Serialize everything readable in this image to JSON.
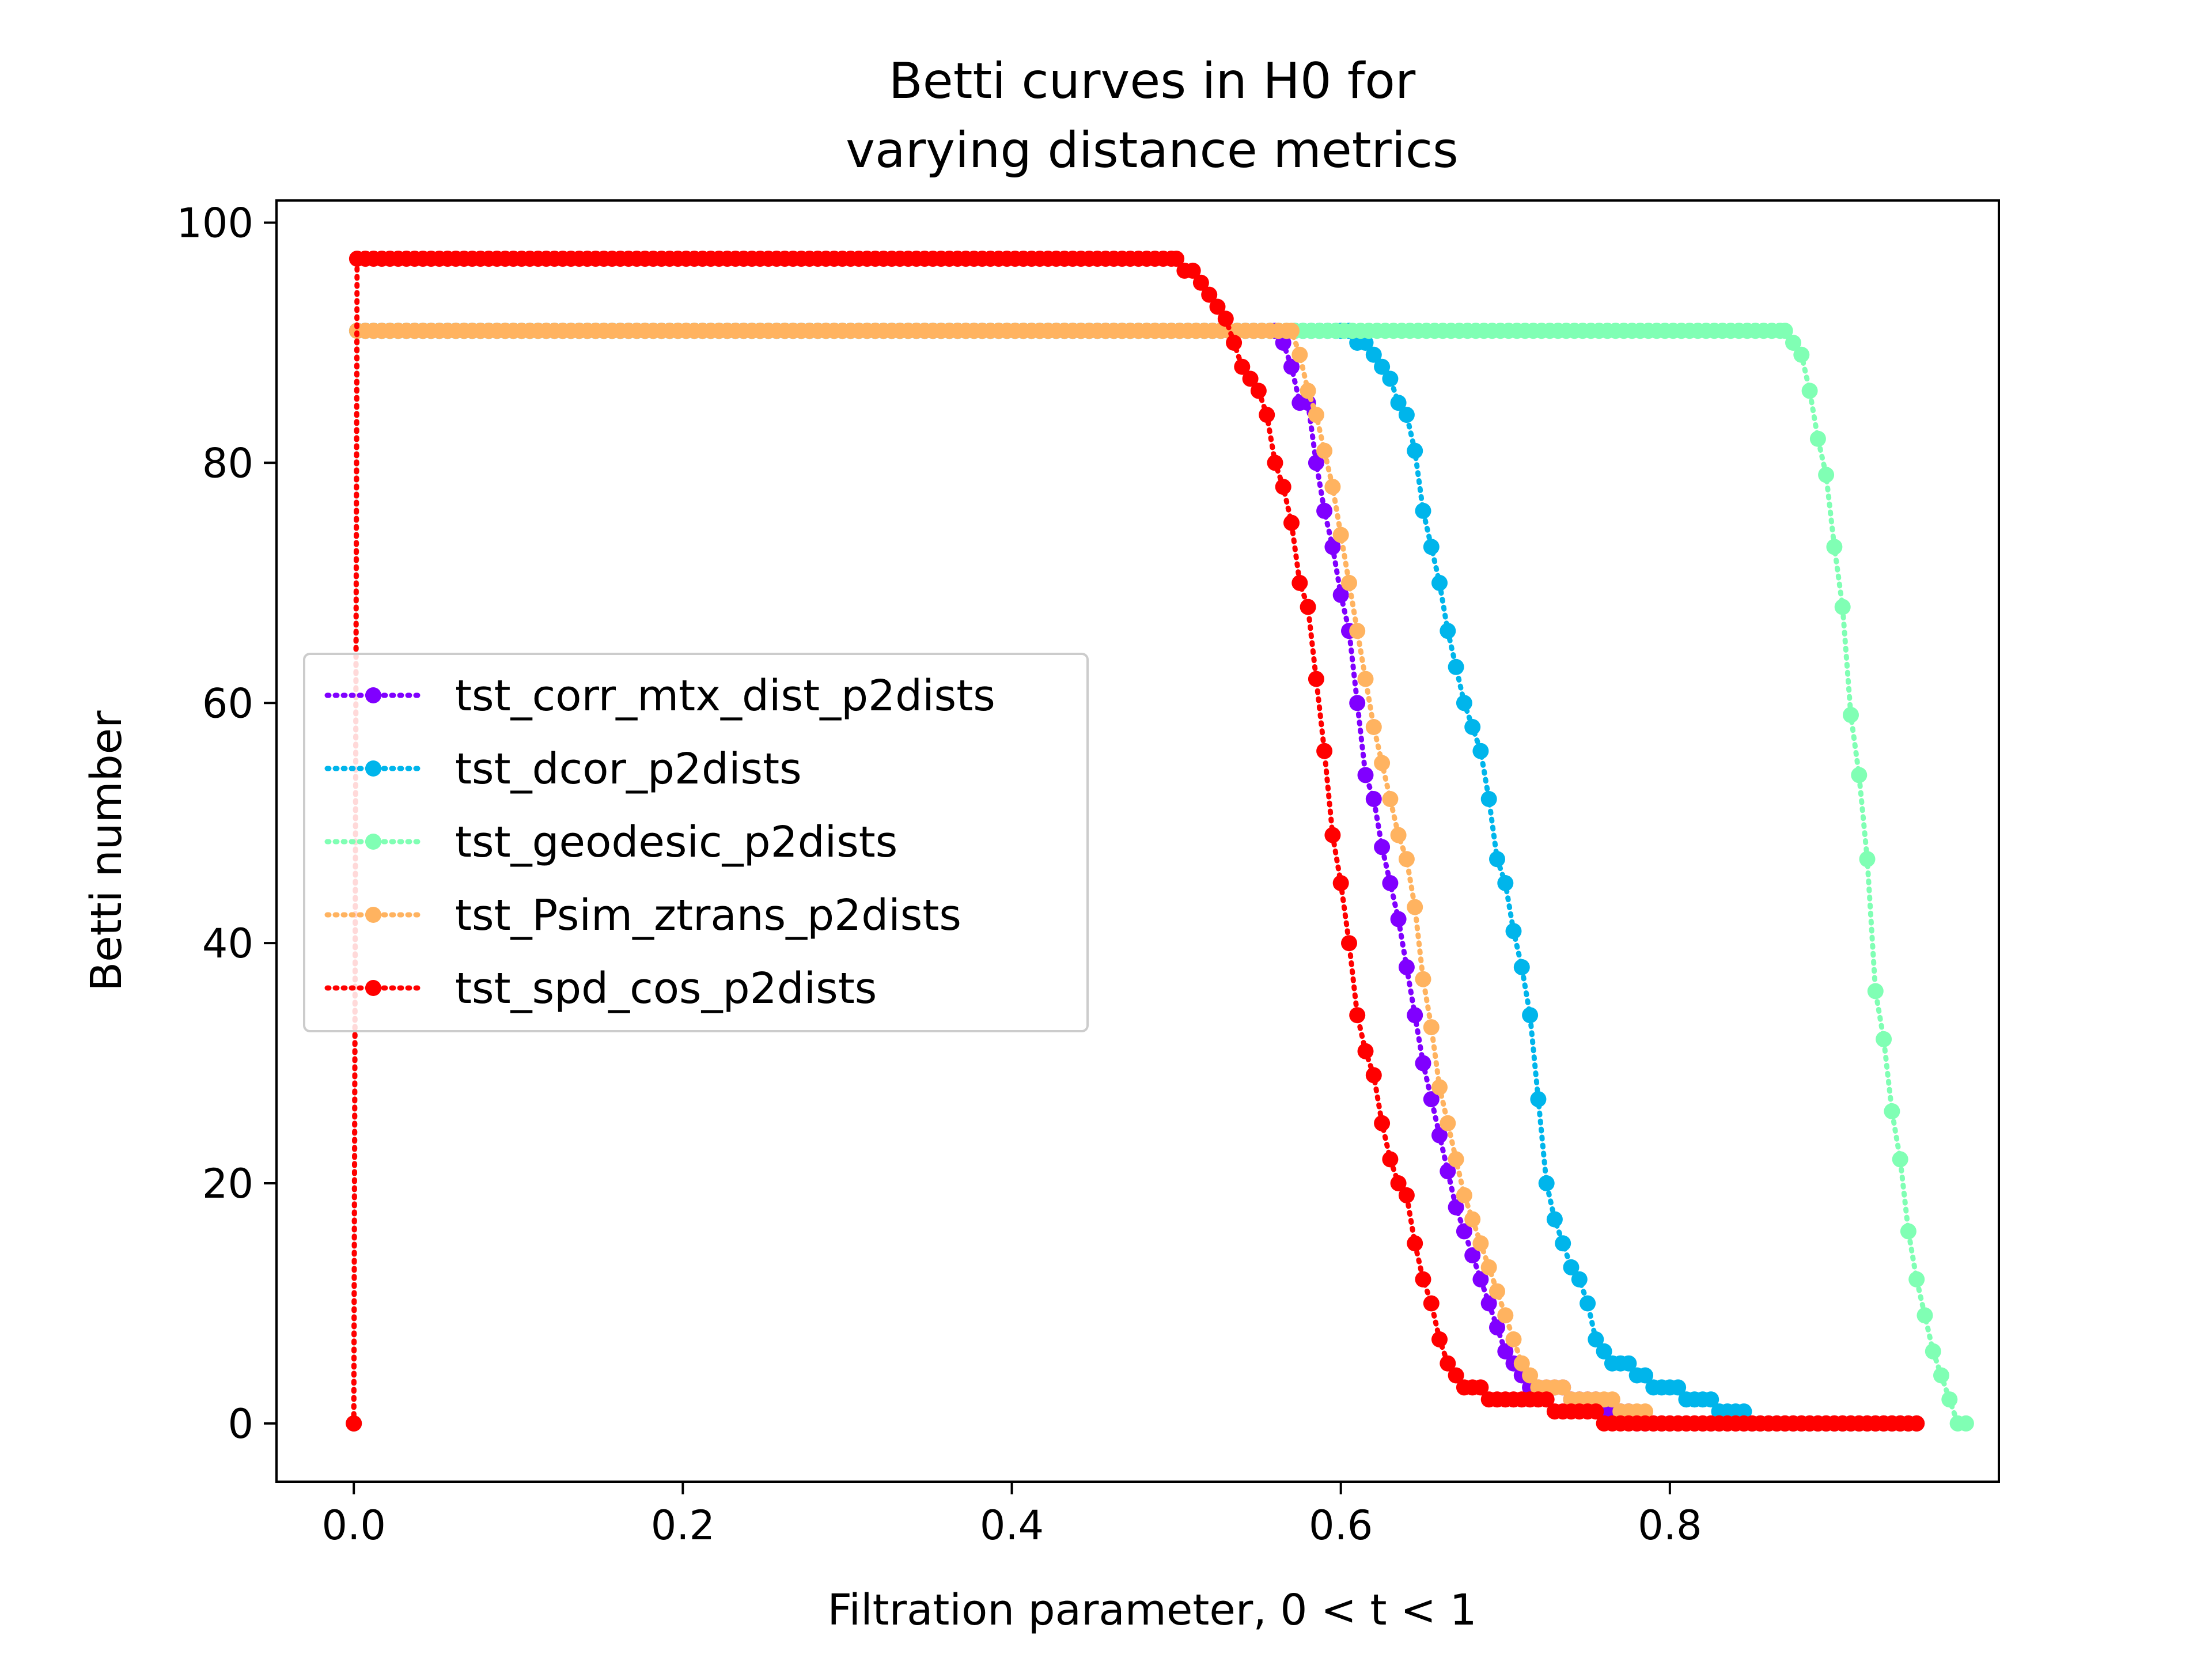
{
  "chart_data": {
    "type": "line",
    "title_line1": "Betti curves in H0 for",
    "title_line2": "varying distance metrics",
    "xlabel": "Filtration parameter, 0 < t < 1",
    "ylabel": "Betti number",
    "xlim": [
      -0.047,
      1.0
    ],
    "ylim": [
      -4.85,
      101.85
    ],
    "xticks": [
      0.0,
      0.2,
      0.4,
      0.6,
      0.8
    ],
    "xtick_labels": [
      "0.0",
      "0.2",
      "0.4",
      "0.6",
      "0.8"
    ],
    "yticks": [
      0,
      20,
      40,
      60,
      80,
      100
    ],
    "ytick_labels": [
      "0",
      "20",
      "40",
      "60",
      "80",
      "100"
    ],
    "legend_position": "center-left",
    "line_style": "dotted",
    "marker": "circle",
    "series": [
      {
        "name": "tst_corr_mtx_dist_p2dists",
        "color": "#8000ff",
        "points": [
          [
            0.0,
            0
          ],
          [
            0.002,
            91
          ],
          [
            0.56,
            91
          ],
          [
            0.565,
            90
          ],
          [
            0.57,
            88
          ],
          [
            0.575,
            85
          ],
          [
            0.58,
            85
          ],
          [
            0.585,
            80
          ],
          [
            0.59,
            76
          ],
          [
            0.595,
            73
          ],
          [
            0.6,
            69
          ],
          [
            0.605,
            66
          ],
          [
            0.61,
            60
          ],
          [
            0.615,
            54
          ],
          [
            0.62,
            52
          ],
          [
            0.625,
            48
          ],
          [
            0.63,
            45
          ],
          [
            0.635,
            42
          ],
          [
            0.64,
            38
          ],
          [
            0.645,
            34
          ],
          [
            0.65,
            30
          ],
          [
            0.655,
            27
          ],
          [
            0.66,
            24
          ],
          [
            0.665,
            21
          ],
          [
            0.67,
            18
          ],
          [
            0.675,
            16
          ],
          [
            0.68,
            14
          ],
          [
            0.685,
            12
          ],
          [
            0.69,
            10
          ],
          [
            0.695,
            8
          ],
          [
            0.7,
            6
          ],
          [
            0.705,
            5
          ],
          [
            0.71,
            4
          ],
          [
            0.715,
            3
          ],
          [
            0.72,
            3
          ],
          [
            0.73,
            3
          ],
          [
            0.74,
            2
          ],
          [
            0.75,
            2
          ],
          [
            0.76,
            1
          ],
          [
            0.77,
            1
          ],
          [
            0.78,
            0
          ],
          [
            0.95,
            0
          ]
        ]
      },
      {
        "name": "tst_dcor_p2dists",
        "color": "#00b5eb",
        "points": [
          [
            0.0,
            0
          ],
          [
            0.002,
            91
          ],
          [
            0.6,
            91
          ],
          [
            0.61,
            90
          ],
          [
            0.62,
            89
          ],
          [
            0.625,
            88
          ],
          [
            0.63,
            87
          ],
          [
            0.635,
            85
          ],
          [
            0.64,
            84
          ],
          [
            0.645,
            81
          ],
          [
            0.65,
            76
          ],
          [
            0.655,
            73
          ],
          [
            0.66,
            70
          ],
          [
            0.665,
            66
          ],
          [
            0.67,
            63
          ],
          [
            0.675,
            60
          ],
          [
            0.68,
            58
          ],
          [
            0.685,
            56
          ],
          [
            0.69,
            52
          ],
          [
            0.695,
            47
          ],
          [
            0.7,
            45
          ],
          [
            0.705,
            41
          ],
          [
            0.71,
            38
          ],
          [
            0.715,
            34
          ],
          [
            0.72,
            27
          ],
          [
            0.725,
            20
          ],
          [
            0.73,
            17
          ],
          [
            0.735,
            15
          ],
          [
            0.74,
            13
          ],
          [
            0.745,
            12
          ],
          [
            0.75,
            10
          ],
          [
            0.755,
            7
          ],
          [
            0.76,
            6
          ],
          [
            0.765,
            5
          ],
          [
            0.77,
            5
          ],
          [
            0.78,
            4
          ],
          [
            0.79,
            3
          ],
          [
            0.8,
            3
          ],
          [
            0.81,
            2
          ],
          [
            0.82,
            2
          ],
          [
            0.83,
            1
          ],
          [
            0.84,
            1
          ],
          [
            0.85,
            0
          ],
          [
            0.95,
            0
          ]
        ]
      },
      {
        "name": "tst_geodesic_p2dists",
        "color": "#80ffb4",
        "points": [
          [
            0.0,
            0
          ],
          [
            0.002,
            91
          ],
          [
            0.87,
            91
          ],
          [
            0.875,
            90
          ],
          [
            0.88,
            89
          ],
          [
            0.885,
            86
          ],
          [
            0.89,
            82
          ],
          [
            0.895,
            79
          ],
          [
            0.9,
            73
          ],
          [
            0.905,
            68
          ],
          [
            0.91,
            59
          ],
          [
            0.915,
            54
          ],
          [
            0.92,
            47
          ],
          [
            0.925,
            36
          ],
          [
            0.93,
            32
          ],
          [
            0.935,
            26
          ],
          [
            0.94,
            22
          ],
          [
            0.945,
            16
          ],
          [
            0.95,
            12
          ],
          [
            0.955,
            9
          ],
          [
            0.96,
            6
          ],
          [
            0.965,
            4
          ],
          [
            0.97,
            2
          ],
          [
            0.975,
            0
          ],
          [
            0.98,
            0
          ]
        ]
      },
      {
        "name": "tst_Psim_ztrans_p2dists",
        "color": "#ffb360",
        "points": [
          [
            0.0,
            0
          ],
          [
            0.002,
            91
          ],
          [
            0.57,
            91
          ],
          [
            0.575,
            89
          ],
          [
            0.58,
            86
          ],
          [
            0.585,
            84
          ],
          [
            0.59,
            81
          ],
          [
            0.595,
            78
          ],
          [
            0.6,
            74
          ],
          [
            0.605,
            70
          ],
          [
            0.61,
            66
          ],
          [
            0.615,
            62
          ],
          [
            0.62,
            58
          ],
          [
            0.625,
            55
          ],
          [
            0.63,
            52
          ],
          [
            0.635,
            49
          ],
          [
            0.64,
            47
          ],
          [
            0.645,
            43
          ],
          [
            0.65,
            37
          ],
          [
            0.655,
            33
          ],
          [
            0.66,
            28
          ],
          [
            0.665,
            25
          ],
          [
            0.67,
            22
          ],
          [
            0.675,
            19
          ],
          [
            0.68,
            17
          ],
          [
            0.685,
            15
          ],
          [
            0.69,
            13
          ],
          [
            0.695,
            11
          ],
          [
            0.7,
            9
          ],
          [
            0.705,
            7
          ],
          [
            0.71,
            5
          ],
          [
            0.715,
            4
          ],
          [
            0.72,
            3
          ],
          [
            0.73,
            3
          ],
          [
            0.74,
            2
          ],
          [
            0.75,
            2
          ],
          [
            0.76,
            2
          ],
          [
            0.77,
            1
          ],
          [
            0.78,
            1
          ],
          [
            0.79,
            0
          ],
          [
            0.95,
            0
          ]
        ]
      },
      {
        "name": "tst_spd_cos_p2dists",
        "color": "#ff0000",
        "points": [
          [
            0.0,
            0
          ],
          [
            0.002,
            97
          ],
          [
            0.5,
            97
          ],
          [
            0.505,
            96
          ],
          [
            0.51,
            96
          ],
          [
            0.515,
            95
          ],
          [
            0.52,
            94
          ],
          [
            0.525,
            93
          ],
          [
            0.53,
            92
          ],
          [
            0.535,
            90
          ],
          [
            0.54,
            88
          ],
          [
            0.545,
            87
          ],
          [
            0.55,
            86
          ],
          [
            0.555,
            84
          ],
          [
            0.56,
            80
          ],
          [
            0.565,
            78
          ],
          [
            0.57,
            75
          ],
          [
            0.575,
            70
          ],
          [
            0.58,
            68
          ],
          [
            0.585,
            62
          ],
          [
            0.59,
            56
          ],
          [
            0.595,
            49
          ],
          [
            0.6,
            45
          ],
          [
            0.605,
            40
          ],
          [
            0.61,
            34
          ],
          [
            0.615,
            31
          ],
          [
            0.62,
            29
          ],
          [
            0.625,
            25
          ],
          [
            0.63,
            22
          ],
          [
            0.635,
            20
          ],
          [
            0.64,
            19
          ],
          [
            0.645,
            15
          ],
          [
            0.65,
            12
          ],
          [
            0.655,
            10
          ],
          [
            0.66,
            7
          ],
          [
            0.665,
            5
          ],
          [
            0.67,
            4
          ],
          [
            0.675,
            3
          ],
          [
            0.68,
            3
          ],
          [
            0.69,
            2
          ],
          [
            0.7,
            2
          ],
          [
            0.72,
            2
          ],
          [
            0.73,
            1
          ],
          [
            0.75,
            1
          ],
          [
            0.76,
            0
          ],
          [
            0.95,
            0
          ]
        ]
      }
    ]
  }
}
